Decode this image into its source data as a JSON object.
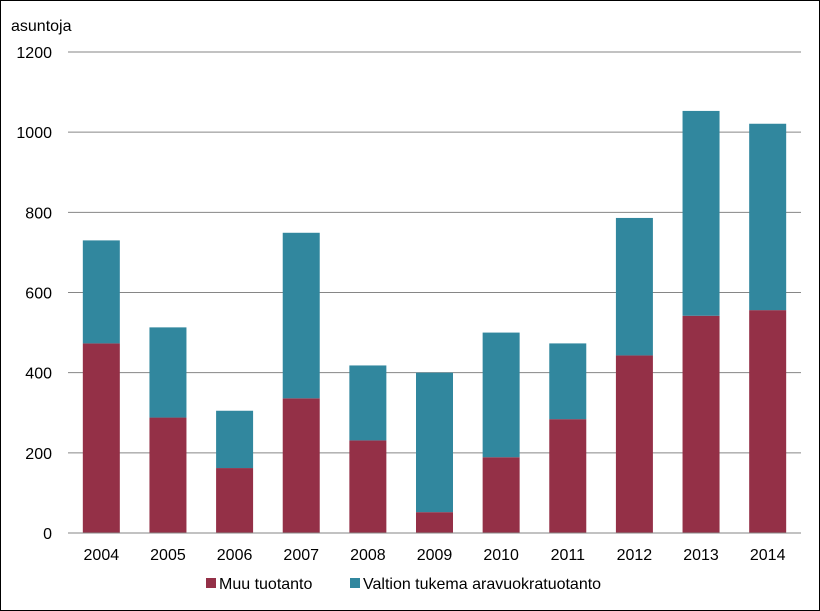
{
  "chart_data": {
    "type": "bar",
    "stacked": true,
    "ylabel": "asuntoja",
    "ylim": [
      0,
      1200
    ],
    "yticks": [
      0,
      200,
      400,
      600,
      800,
      1000,
      1200
    ],
    "categories": [
      "2004",
      "2005",
      "2006",
      "2007",
      "2008",
      "2009",
      "2010",
      "2011",
      "2012",
      "2013",
      "2014"
    ],
    "series": [
      {
        "name": "Muu tuotanto",
        "color": "#943047",
        "values": [
          473,
          288,
          162,
          336,
          231,
          52,
          189,
          284,
          443,
          542,
          556
        ]
      },
      {
        "name": "Valtion tukema aravuokratuotanto",
        "color": "#31879E",
        "values": [
          257,
          225,
          143,
          413,
          187,
          348,
          311,
          189,
          343,
          511,
          465
        ]
      }
    ],
    "grid": true,
    "legend_position": "bottom"
  }
}
